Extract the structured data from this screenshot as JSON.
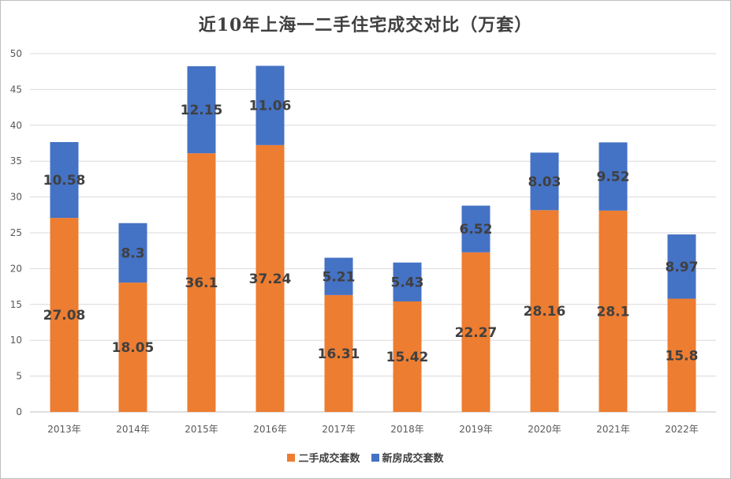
{
  "chart_data": {
    "type": "bar",
    "stacked": true,
    "title": "近10年上海一二手住宅成交对比（万套）",
    "xlabel": "",
    "ylabel": "",
    "categories": [
      "2013年",
      "2014年",
      "2015年",
      "2016年",
      "2017年",
      "2018年",
      "2019年",
      "2020年",
      "2021年",
      "2022年"
    ],
    "ylim": [
      0,
      50
    ],
    "yticks": [
      0,
      5,
      10,
      15,
      20,
      25,
      30,
      35,
      40,
      45,
      50
    ],
    "grid": true,
    "legend_position": "bottom",
    "series": [
      {
        "name": "二手成交套数",
        "color": "#ed7d31",
        "values": [
          27.08,
          18.05,
          36.1,
          37.24,
          16.31,
          15.42,
          22.27,
          28.16,
          28.1,
          15.8
        ]
      },
      {
        "name": "新房成交套数",
        "color": "#4472c4",
        "values": [
          10.58,
          8.3,
          12.15,
          11.06,
          5.21,
          5.43,
          6.52,
          8.03,
          9.52,
          8.97
        ]
      }
    ]
  }
}
